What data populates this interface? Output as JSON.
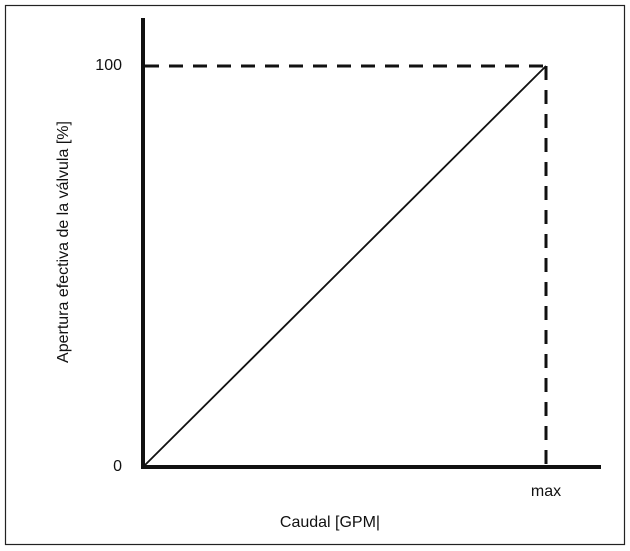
{
  "chart_data": {
    "type": "line",
    "x_label": "Caudal [GPM|",
    "y_label": "Apertura efectiva de la válvula [%]",
    "x": [
      0,
      1
    ],
    "series": [
      {
        "color": "#111111",
        "values": [
          0,
          100
        ]
      }
    ],
    "xlim": [
      0,
      1
    ],
    "ylim": [
      0,
      100
    ],
    "xticks": [
      {
        "value": 1,
        "label": "max"
      }
    ],
    "yticks": [
      0,
      100
    ],
    "grid": false
  }
}
